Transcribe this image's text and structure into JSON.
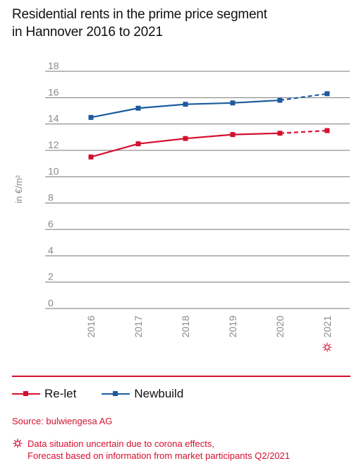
{
  "title_line1": "Residential rents in the prime price segment",
  "title_line2": "in Hannover 2016 to 2021",
  "colors": {
    "relet": "#d5102f",
    "newbuild": "#1d5b9e",
    "grid": "#777777",
    "axis_text": "#8a8a8a",
    "accent": "#d5102f"
  },
  "chart_data": {
    "type": "line",
    "ylabel": "in €/m²",
    "ylim": [
      0,
      18
    ],
    "yticks": [
      0,
      2,
      4,
      6,
      8,
      10,
      12,
      14,
      16,
      18
    ],
    "categories": [
      "2016",
      "2017",
      "2018",
      "2019",
      "2020",
      "2021"
    ],
    "forecast_category": "2021",
    "series": [
      {
        "name": "Re-let",
        "color_key": "relet",
        "values": [
          11.5,
          12.5,
          12.9,
          13.2,
          13.3,
          13.5
        ]
      },
      {
        "name": "Newbuild",
        "color_key": "newbuild",
        "values": [
          14.5,
          15.2,
          15.5,
          15.6,
          15.8,
          16.3
        ]
      }
    ]
  },
  "legend": {
    "relet_label": "Re-let",
    "newbuild_label": "Newbuild"
  },
  "source": "Source: bulwiengesa AG",
  "note_line1": "Data situation uncertain due to corona effects,",
  "note_line2": "Forecast based on information from market participants Q2/2021",
  "note_icon": "virus-icon"
}
